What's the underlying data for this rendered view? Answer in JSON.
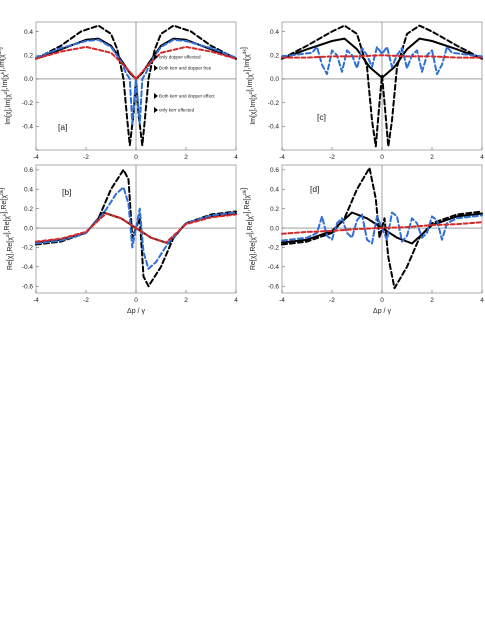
{
  "chart_data": [
    {
      "type": "line",
      "panel_label": "[a]",
      "ylabel": "Im[χ],Im[χ^d],Im[χ^k],Im[χ^dk]",
      "xlabel": "",
      "xlim": [
        -4,
        4
      ],
      "ylim": [
        -0.6,
        0.48
      ],
      "x_ticks": [
        -4,
        -2,
        0,
        2,
        4
      ],
      "y_ticks": [
        -0.6,
        -0.4,
        -0.2,
        0.0,
        0.2,
        0.4
      ],
      "y_tick_labels": [
        "",
        "-0.4",
        "-0.2",
        "0.0",
        "0.2",
        "0.4"
      ],
      "legend": [
        {
          "series": 0,
          "label": "only dopper effected"
        },
        {
          "series": 1,
          "label": "Both kerr and dopper free"
        },
        {
          "series": 2,
          "label": "Both kerr and dopper effect"
        },
        {
          "series": 3,
          "label": "only kerr effected"
        }
      ],
      "series": [
        {
          "style": "solid",
          "color": "#000000",
          "x": [
            -4,
            -3,
            -2,
            -1.5,
            -1,
            -0.5,
            -0.25,
            0,
            0.25,
            0.5,
            1,
            1.5,
            2,
            3,
            4
          ],
          "y": [
            0.17,
            0.25,
            0.33,
            0.34,
            0.28,
            0.13,
            0.05,
            0.0,
            0.05,
            0.13,
            0.28,
            0.34,
            0.33,
            0.25,
            0.17
          ]
        },
        {
          "style": "dashed",
          "color": "#000000",
          "x": [
            -4,
            -3,
            -2.2,
            -1.5,
            -1,
            -0.75,
            -0.5,
            -0.35,
            -0.25,
            -0.1,
            0,
            0.1,
            0.25,
            0.35,
            0.5,
            0.75,
            1,
            1.5,
            2.2,
            3,
            4
          ],
          "y": [
            0.17,
            0.28,
            0.4,
            0.45,
            0.38,
            0.25,
            0.0,
            -0.35,
            -0.56,
            -0.3,
            0.0,
            -0.3,
            -0.56,
            -0.35,
            0.0,
            0.25,
            0.38,
            0.45,
            0.4,
            0.28,
            0.17
          ]
        },
        {
          "style": "dashed",
          "color": "#2f6fd6",
          "x": [
            -4,
            -3,
            -2,
            -1.5,
            -1,
            -0.6,
            -0.4,
            -0.25,
            -0.15,
            -0.08,
            0,
            0.08,
            0.15,
            0.25,
            0.4,
            0.6,
            1,
            1.5,
            2,
            3,
            4
          ],
          "y": [
            0.18,
            0.26,
            0.32,
            0.33,
            0.27,
            0.15,
            0.05,
            0.0,
            -0.38,
            -0.2,
            0.0,
            -0.2,
            -0.38,
            0.0,
            0.05,
            0.15,
            0.27,
            0.33,
            0.32,
            0.26,
            0.18
          ]
        },
        {
          "style": "dashed",
          "color": "#d42a2a",
          "x": [
            -4,
            -3,
            -2,
            -1,
            -0.5,
            0,
            0.5,
            1,
            2,
            3,
            4
          ],
          "y": [
            0.17,
            0.23,
            0.27,
            0.22,
            0.12,
            0.0,
            0.12,
            0.22,
            0.27,
            0.23,
            0.17
          ]
        }
      ]
    },
    {
      "type": "line",
      "panel_label": "[c]",
      "ylabel": "Im[χ],Im[χ^d],Im[χ^k],Im[χ^dk]",
      "xlabel": "",
      "xlim": [
        -4,
        4
      ],
      "ylim": [
        -0.6,
        0.48
      ],
      "x_ticks": [
        -4,
        -2,
        0,
        2,
        4
      ],
      "y_ticks": [
        -0.6,
        -0.4,
        -0.2,
        0.0,
        0.2,
        0.4
      ],
      "y_tick_labels": [
        "",
        "-0.4",
        "-0.2",
        "0.0",
        "0.2",
        "0.4"
      ],
      "series": [
        {
          "style": "solid",
          "color": "#000000",
          "x": [
            -4,
            -3,
            -2,
            -1.5,
            -1,
            -0.5,
            0,
            0.5,
            1,
            1.5,
            2,
            3,
            4
          ],
          "y": [
            0.17,
            0.25,
            0.32,
            0.34,
            0.25,
            0.1,
            0.01,
            0.1,
            0.25,
            0.34,
            0.32,
            0.25,
            0.17
          ]
        },
        {
          "style": "dashed",
          "color": "#000000",
          "x": [
            -4,
            -3,
            -2,
            -1.5,
            -1,
            -0.6,
            -0.4,
            -0.25,
            -0.1,
            0,
            0.1,
            0.25,
            0.4,
            0.6,
            1,
            1.5,
            2,
            3,
            4
          ],
          "y": [
            0.17,
            0.28,
            0.4,
            0.45,
            0.38,
            0.1,
            -0.35,
            -0.57,
            -0.2,
            0.03,
            -0.2,
            -0.57,
            -0.35,
            0.1,
            0.38,
            0.45,
            0.4,
            0.28,
            0.17
          ]
        },
        {
          "style": "dashed",
          "color": "#2f6fd6",
          "x": [
            -4,
            -3.2,
            -2.8,
            -2.6,
            -2.4,
            -2.2,
            -2.0,
            -1.8,
            -1.6,
            -1.4,
            -1.2,
            -1.0,
            -0.8,
            -0.6,
            -0.4,
            -0.2,
            0,
            0.2,
            0.4,
            0.6,
            0.8,
            1.0,
            1.2,
            1.4,
            1.6,
            1.8,
            2.0,
            2.2,
            2.4,
            2.6,
            2.8,
            3.2,
            4
          ],
          "y": [
            0.19,
            0.21,
            0.22,
            0.27,
            0.12,
            0.04,
            0.24,
            0.2,
            0.06,
            0.24,
            0.2,
            0.09,
            0.26,
            0.2,
            0.1,
            0.27,
            0.21,
            0.27,
            0.1,
            0.2,
            0.26,
            0.09,
            0.2,
            0.24,
            0.06,
            0.2,
            0.24,
            0.04,
            0.12,
            0.27,
            0.22,
            0.21,
            0.19
          ]
        },
        {
          "style": "dashed",
          "color": "#d42a2a",
          "x": [
            -4,
            -3,
            -2,
            -1,
            0,
            1,
            2,
            3,
            4
          ],
          "y": [
            0.18,
            0.18,
            0.19,
            0.19,
            0.2,
            0.19,
            0.19,
            0.18,
            0.18
          ]
        }
      ]
    },
    {
      "type": "line",
      "panel_label": "[b]",
      "ylabel": "Re[χ],Re[χ^d],Re[χ^k],Re[χ^dk]",
      "xlabel": "Δp / γ",
      "xlim": [
        -4,
        4
      ],
      "ylim": [
        -0.67,
        0.65
      ],
      "x_ticks": [
        -4,
        -2,
        0,
        2,
        4
      ],
      "y_ticks": [
        -0.6,
        -0.4,
        -0.2,
        0.0,
        0.2,
        0.4,
        0.6
      ],
      "y_tick_labels": [
        "-0.6",
        "-0.4",
        "-0.2",
        "0.0",
        "0.2",
        "0.4",
        "0.6"
      ],
      "series": [
        {
          "style": "solid",
          "color": "#000000",
          "x": [
            -4,
            -3,
            -2,
            -1.3,
            -0.6,
            0,
            0.6,
            1.3,
            2,
            3,
            4
          ],
          "y": [
            -0.15,
            -0.12,
            -0.05,
            0.16,
            0.1,
            0.0,
            -0.1,
            -0.16,
            0.05,
            0.12,
            0.15
          ]
        },
        {
          "style": "dashed",
          "color": "#000000",
          "x": [
            -4,
            -3,
            -2,
            -1.5,
            -1,
            -0.5,
            -0.3,
            -0.15,
            0,
            0.15,
            0.3,
            0.5,
            1,
            1.5,
            2,
            3,
            4
          ],
          "y": [
            -0.17,
            -0.14,
            -0.05,
            0.1,
            0.4,
            0.6,
            0.5,
            -0.1,
            0.0,
            0.1,
            -0.5,
            -0.6,
            -0.4,
            -0.1,
            0.05,
            0.14,
            0.17
          ]
        },
        {
          "style": "dashed",
          "color": "#2f6fd6",
          "x": [
            -4,
            -3,
            -2,
            -1.3,
            -0.8,
            -0.5,
            -0.3,
            -0.15,
            0,
            0.15,
            0.3,
            0.5,
            0.8,
            1.3,
            2,
            3,
            4
          ],
          "y": [
            -0.16,
            -0.13,
            -0.05,
            0.15,
            0.35,
            0.42,
            0.25,
            -0.2,
            0.0,
            0.2,
            -0.25,
            -0.42,
            -0.35,
            -0.15,
            0.05,
            0.13,
            0.16
          ]
        },
        {
          "style": "dashed",
          "color": "#d42a2a",
          "x": [
            -4,
            -3,
            -2,
            -1.2,
            -0.6,
            0,
            0.6,
            1.2,
            2,
            3,
            4
          ],
          "y": [
            -0.14,
            -0.11,
            -0.04,
            0.15,
            0.1,
            0.0,
            -0.1,
            -0.15,
            0.04,
            0.11,
            0.14
          ]
        }
      ]
    },
    {
      "type": "line",
      "panel_label": "[d]",
      "ylabel": "Re[χ],Re[χ^d],Re[χ^k],Re[χ^dk]",
      "xlabel": "Δp / γ",
      "xlim": [
        -4,
        4
      ],
      "ylim": [
        -0.67,
        0.65
      ],
      "x_ticks": [
        -4,
        -2,
        0,
        2,
        4
      ],
      "y_ticks": [
        -0.6,
        -0.4,
        -0.2,
        0.0,
        0.2,
        0.4,
        0.6
      ],
      "y_tick_labels": [
        "-0.6",
        "-0.4",
        "-0.2",
        "0.0",
        "0.2",
        "0.4",
        "0.6"
      ],
      "series": [
        {
          "style": "solid",
          "color": "#000000",
          "x": [
            -4,
            -3,
            -2,
            -1.2,
            -0.6,
            0,
            0.6,
            1.2,
            2,
            3,
            4
          ],
          "y": [
            -0.15,
            -0.12,
            -0.03,
            0.16,
            0.1,
            0.0,
            -0.1,
            -0.16,
            0.03,
            0.12,
            0.15
          ]
        },
        {
          "style": "dashed",
          "color": "#000000",
          "x": [
            -4,
            -3,
            -2,
            -1.5,
            -1,
            -0.5,
            -0.25,
            -0.1,
            0,
            0.1,
            0.25,
            0.5,
            1,
            1.5,
            2,
            3,
            4
          ],
          "y": [
            -0.17,
            -0.14,
            -0.05,
            0.1,
            0.4,
            0.62,
            0.3,
            -0.1,
            0.0,
            0.1,
            -0.3,
            -0.62,
            -0.4,
            -0.1,
            0.05,
            0.14,
            0.17
          ]
        },
        {
          "style": "dashed",
          "color": "#2f6fd6",
          "x": [
            -4,
            -3.0,
            -2.6,
            -2.4,
            -2.2,
            -2.0,
            -1.8,
            -1.6,
            -1.4,
            -1.2,
            -1.0,
            -0.8,
            -0.6,
            -0.4,
            -0.2,
            0,
            0.2,
            0.4,
            0.6,
            0.8,
            1.0,
            1.2,
            1.4,
            1.6,
            1.8,
            2.0,
            2.2,
            2.4,
            2.6,
            3.0,
            4
          ],
          "y": [
            -0.13,
            -0.1,
            -0.05,
            0.12,
            -0.08,
            -0.12,
            0.05,
            0.1,
            -0.05,
            -0.1,
            0.08,
            0.14,
            -0.12,
            -0.16,
            0.12,
            0.0,
            -0.12,
            0.16,
            0.12,
            -0.14,
            -0.08,
            0.1,
            0.05,
            -0.1,
            -0.05,
            0.12,
            0.08,
            -0.12,
            0.05,
            0.1,
            0.13
          ]
        },
        {
          "style": "dashed",
          "color": "#d42a2a",
          "x": [
            -4,
            -3,
            -2,
            -1,
            0,
            1,
            2,
            3,
            4
          ],
          "y": [
            -0.06,
            -0.04,
            -0.03,
            -0.01,
            0.0,
            0.01,
            0.03,
            0.04,
            0.06
          ]
        }
      ]
    }
  ]
}
